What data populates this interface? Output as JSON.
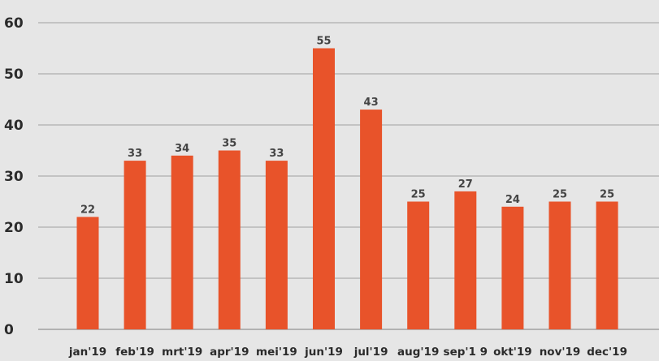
{
  "chart_data": {
    "type": "bar",
    "categories": [
      "jan'19",
      "feb'19",
      "mrt'19",
      "apr'19",
      "mei'19",
      "jun'19",
      "jul'19",
      "aug'19",
      "sep'1 9",
      "okt'19",
      "nov'19",
      "dec'19"
    ],
    "values": [
      22,
      33,
      34,
      35,
      33,
      55,
      43,
      25,
      27,
      24,
      25,
      25
    ],
    "data_labels": [
      "22",
      "33",
      "34",
      "35",
      "33",
      "55",
      "43",
      "25",
      "27",
      "24",
      "25",
      "25"
    ],
    "yticks": [
      "0",
      "10",
      "20",
      "30",
      "40",
      "50",
      "60"
    ],
    "ylim": [
      0,
      60
    ],
    "grid": true,
    "legend": "none",
    "bar_color": "#e8532a",
    "background_color": "#e6e6e6",
    "grid_color": "#a0a0a0"
  }
}
